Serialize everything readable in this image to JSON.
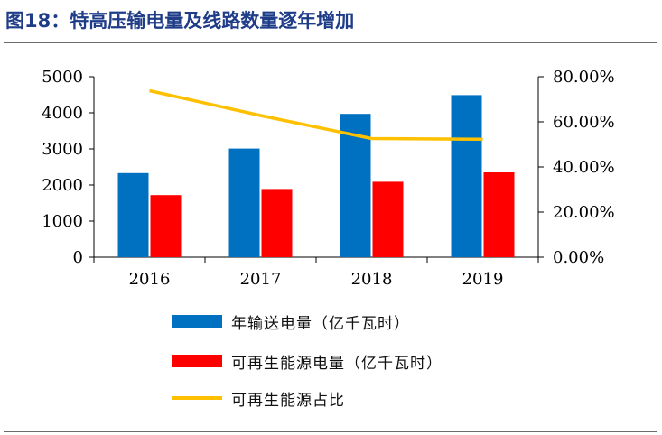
{
  "figure": {
    "title": "图18：特高压输电量及线路数量逐年增加"
  },
  "colors": {
    "title": "#1f3c88",
    "series_1": "#0070c0",
    "series_2": "#ff0000",
    "series_3": "#ffc000",
    "axis": "#000000"
  },
  "chart_data": {
    "type": "bar",
    "categories": [
      "2016",
      "2017",
      "2018",
      "2019"
    ],
    "series": [
      {
        "name": "年输送电量（亿千瓦时）",
        "type": "bar",
        "axis": "left",
        "values": [
          2330,
          3010,
          3970,
          4490
        ]
      },
      {
        "name": "可再生能源电量（亿千瓦时）",
        "type": "bar",
        "axis": "left",
        "values": [
          1720,
          1890,
          2090,
          2350
        ]
      },
      {
        "name": "可再生能源占比",
        "type": "line",
        "axis": "right",
        "values": [
          73.8,
          62.8,
          52.6,
          52.3
        ]
      }
    ],
    "ylim": [
      0,
      5000
    ],
    "y_ticks": [
      "5000",
      "4000",
      "3000",
      "2000",
      "1000",
      "0"
    ],
    "y2lim": [
      0,
      80
    ],
    "y2_ticks": [
      "80.00%",
      "60.00%",
      "40.00%",
      "20.00%",
      "0.00%"
    ],
    "legend_position": "bottom",
    "grid": false
  }
}
